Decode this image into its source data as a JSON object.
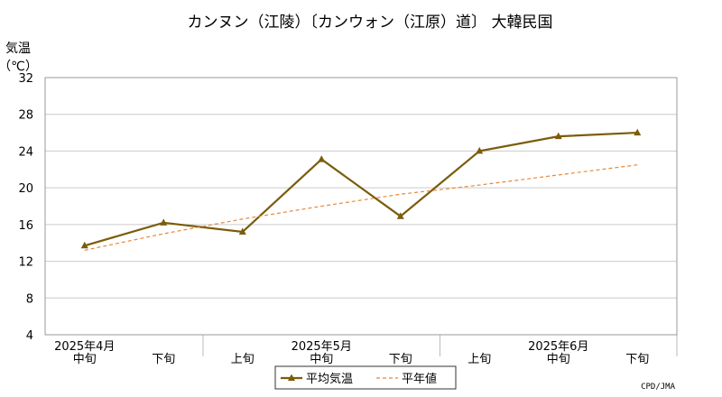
{
  "chart_data": {
    "type": "line",
    "title": "カンヌン（江陵）〔カンウォン（江原）道〕 大韓民国",
    "ylabel": [
      "気温",
      "（℃）"
    ],
    "ylim": [
      4,
      32
    ],
    "yticks": [
      4,
      8,
      12,
      16,
      20,
      24,
      28,
      32
    ],
    "grid": true,
    "categories": [
      "中旬",
      "下旬",
      "上旬",
      "中旬",
      "下旬",
      "上旬",
      "中旬",
      "下旬"
    ],
    "months": [
      {
        "label": "2025年4月",
        "index": 0
      },
      {
        "label": "2025年5月",
        "index": 3
      },
      {
        "label": "2025年6月",
        "index": 6
      }
    ],
    "series": [
      {
        "name": "平均気温",
        "values": [
          13.7,
          16.2,
          15.2,
          23.1,
          16.9,
          24.0,
          25.6,
          26.0
        ],
        "color": "#7a5c0a",
        "style": "solid",
        "marker": "triangle"
      },
      {
        "name": "平年値",
        "values": [
          13.2,
          15.0,
          16.6,
          18.0,
          19.3,
          20.3,
          21.4,
          22.5
        ],
        "color": "#e8883a",
        "style": "dashed"
      }
    ],
    "legend_position": "bottom-center",
    "credit": "CPD/JMA"
  }
}
